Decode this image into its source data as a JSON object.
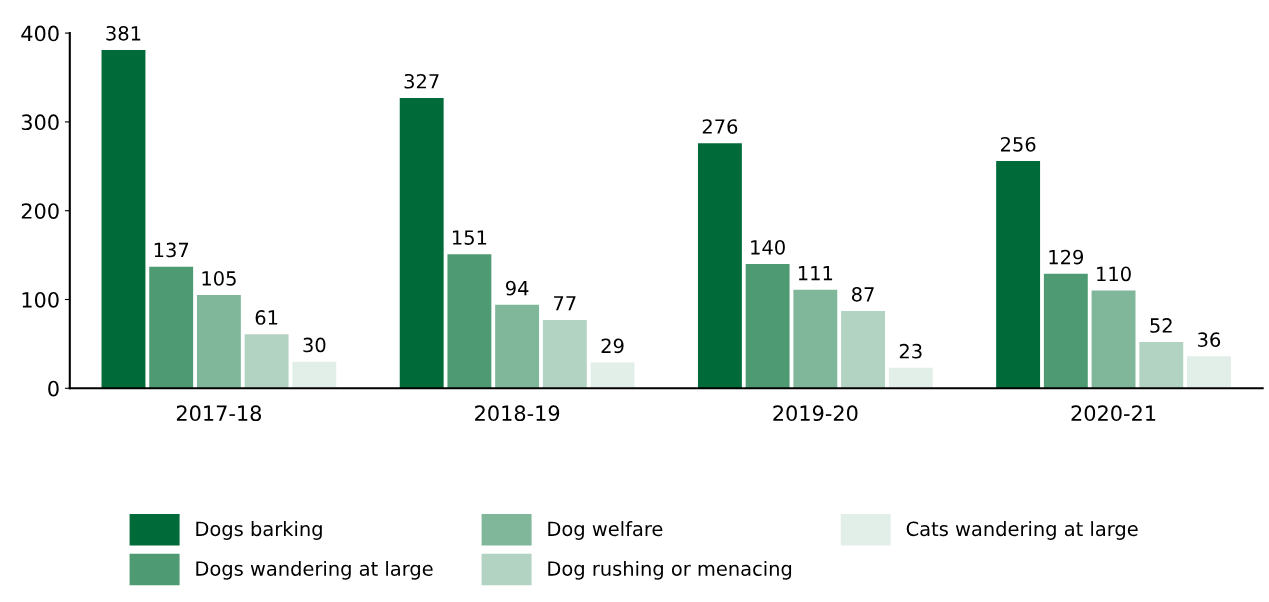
{
  "chart_data": {
    "type": "bar",
    "categories": [
      "2017-18",
      "2018-19",
      "2019-20",
      "2020-21"
    ],
    "series": [
      {
        "name": "Dogs barking",
        "color": "#006a38",
        "values": [
          381,
          327,
          276,
          256
        ]
      },
      {
        "name": "Dogs wandering at large",
        "color": "#4e9a72",
        "values": [
          137,
          151,
          140,
          129
        ]
      },
      {
        "name": "Dog welfare",
        "color": "#80b69a",
        "values": [
          105,
          94,
          111,
          110
        ]
      },
      {
        "name": "Dog rushing or menacing",
        "color": "#b3d3c2",
        "values": [
          61,
          77,
          87,
          52
        ]
      },
      {
        "name": "Cats wandering at large",
        "color": "#e2efe8",
        "values": [
          30,
          29,
          23,
          36
        ]
      }
    ],
    "ylim": [
      0,
      400
    ],
    "yticks": [
      0,
      100,
      200,
      300,
      400
    ],
    "grid": false,
    "legend": "bottom",
    "data_labels": true
  }
}
